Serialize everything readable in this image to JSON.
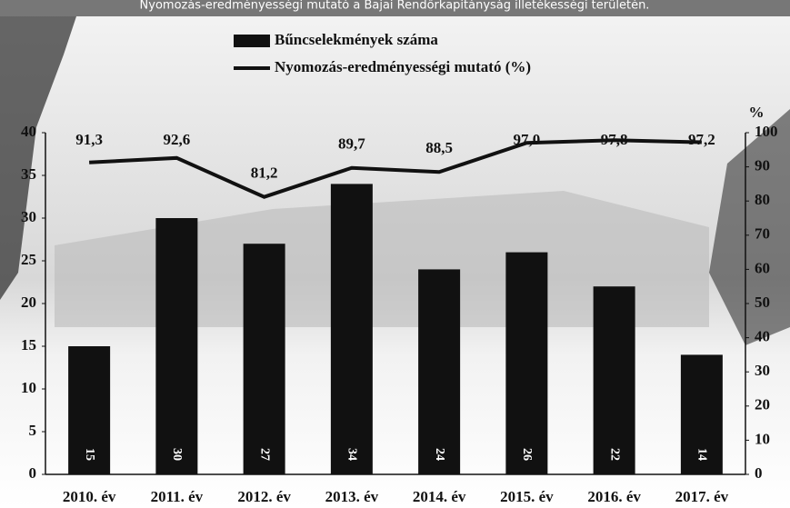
{
  "chart_data": {
    "type": "bar-line",
    "title": "Nyomozás-eredményességi mutató a Bajai Rendőrkapitányság illetékességi területén.",
    "categories": [
      "2010. év",
      "2011. év",
      "2012. év",
      "2013. év",
      "2014. év",
      "2015. év",
      "2016. év",
      "2017. év"
    ],
    "series": [
      {
        "name": "Bűncselekmények száma",
        "type": "bar",
        "color": "#111111",
        "values": [
          15,
          30,
          27,
          34,
          24,
          26,
          22,
          14
        ]
      },
      {
        "name": "Nyomozás-eredményességi mutató (%)",
        "type": "line",
        "axis": "y2",
        "color": "#111111",
        "values": [
          91.3,
          92.6,
          81.2,
          89.7,
          88.5,
          97.0,
          97.8,
          97.2
        ],
        "value_labels": [
          "91,3",
          "92,6",
          "81,2",
          "89,7",
          "88,5",
          "97,0",
          "97,8",
          "97,2"
        ]
      }
    ],
    "ylim": [
      0,
      40
    ],
    "yticks": [
      0,
      5,
      10,
      15,
      20,
      25,
      30,
      35,
      40
    ],
    "y2lim": [
      0,
      100
    ],
    "y2ticks": [
      0,
      10,
      20,
      30,
      40,
      50,
      60,
      70,
      80,
      90,
      100
    ],
    "y2label": "%"
  }
}
